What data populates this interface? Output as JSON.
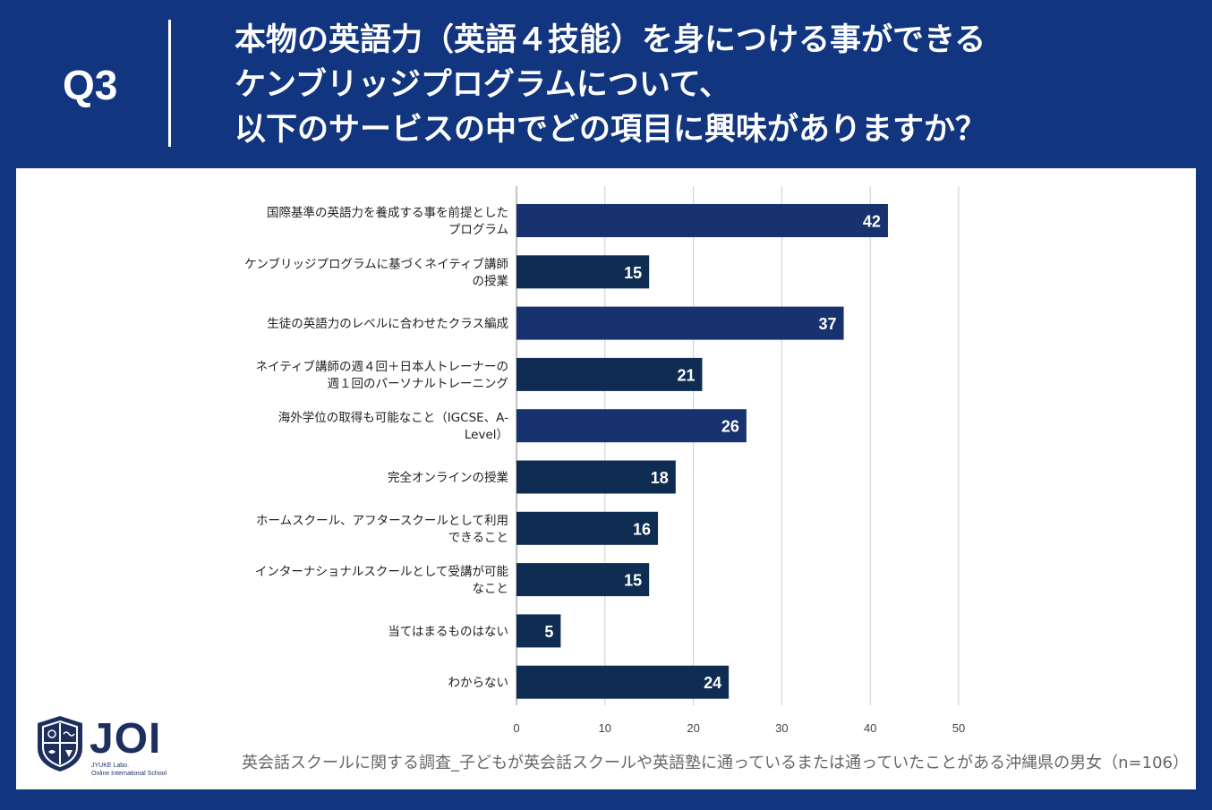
{
  "header": {
    "question_label": "Q3",
    "title_lines": [
      "本物の英語力（英語４技能）を身につける事ができる",
      "ケンブリッジプログラムについて、",
      "以下のサービスの中でどの項目に興味がありますか？"
    ]
  },
  "colors": {
    "background": "#123580",
    "bar_primary": "#17326f",
    "bar_secondary": "#0f2d52",
    "gridline": "#cccccc"
  },
  "chart_data": {
    "type": "bar",
    "orientation": "horizontal",
    "categories": [
      [
        "国際基準の英語力を養成する事を前提とした",
        "プログラム"
      ],
      [
        "ケンブリッジプログラムに基づくネイティブ講師",
        "の授業"
      ],
      [
        "生徒の英語力のレベルに合わせたクラス編成"
      ],
      [
        "ネイティブ講師の週４回＋日本人トレーナーの",
        "週１回のパーソナルトレーニング"
      ],
      [
        "海外学位の取得も可能なこと（IGCSE、A-",
        "Level）"
      ],
      [
        "完全オンラインの授業"
      ],
      [
        "ホームスクール、アフタースクールとして利用",
        "できること"
      ],
      [
        "インターナショナルスクールとして受講が可能",
        "なこと"
      ],
      [
        "当てはまるものはない"
      ],
      [
        "わからない"
      ]
    ],
    "values": [
      42,
      15,
      37,
      21,
      26,
      18,
      16,
      15,
      5,
      24
    ],
    "xlim": [
      0,
      50
    ],
    "xticks": [
      "0",
      "10",
      "20",
      "30",
      "40",
      "50"
    ],
    "grid": true,
    "data_labels": true
  },
  "footer": {
    "note": "英会話スクールに関する調査_子どもが英会話スクールや英語塾に通っているまたは通っていたことがある沖縄県の男女（n=106）"
  },
  "logo": {
    "name": "JOI",
    "line1": "JYUKE Labo.",
    "line2": "Online International School"
  }
}
